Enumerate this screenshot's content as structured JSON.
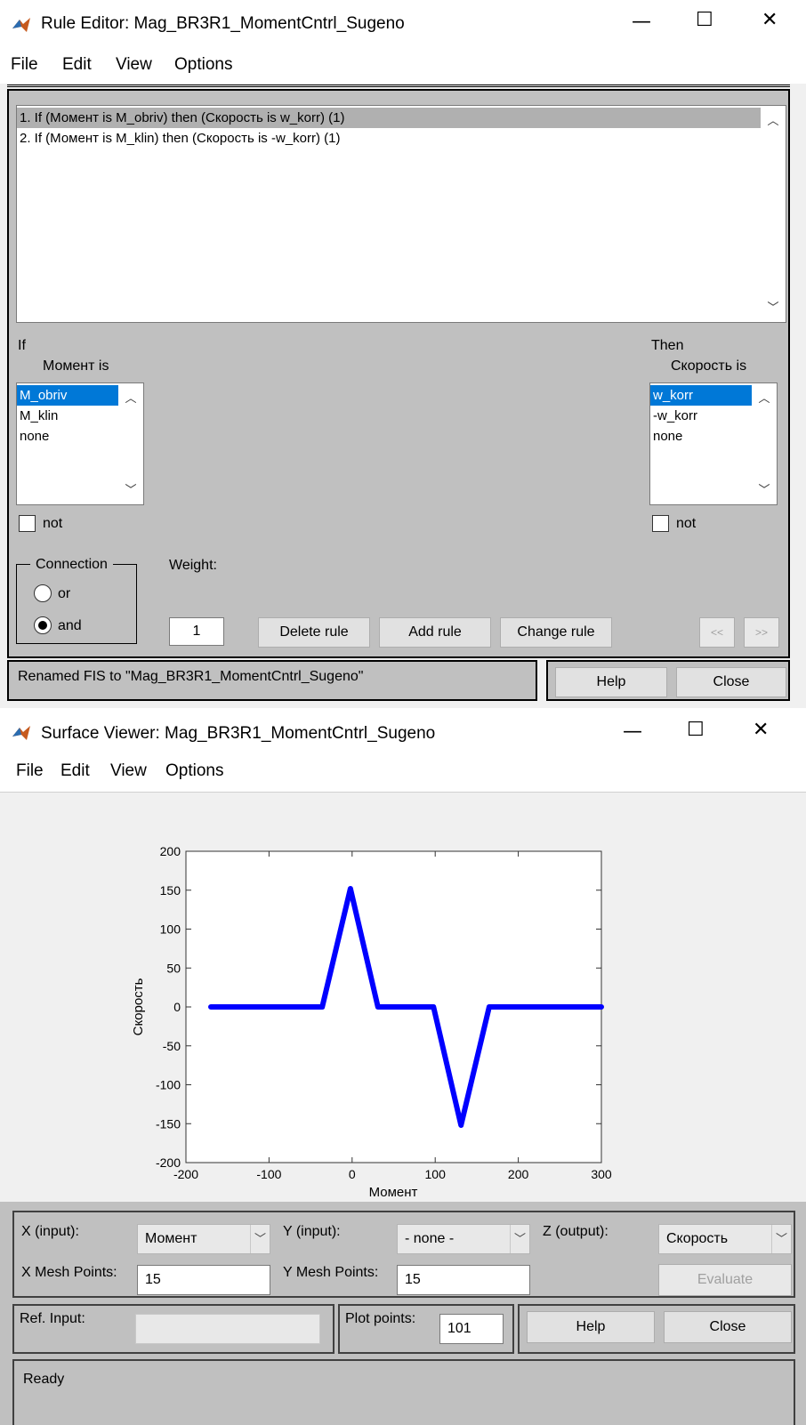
{
  "rule_editor": {
    "title": "Rule Editor: Mag_BR3R1_MomentCntrl_Sugeno",
    "menu": [
      "File",
      "Edit",
      "View",
      "Options"
    ],
    "rules": [
      "1. If (Момент is M_obriv) then (Скорость is w_korr) (1)",
      "2. If (Момент is M_klin) then (Скорость is -w_korr) (1)"
    ],
    "if_label": "If",
    "input_label": "Момент is",
    "input_options": [
      "M_obriv",
      "M_klin",
      "none"
    ],
    "input_selected": "M_obriv",
    "then_label": "Then",
    "output_label": "Скорость is",
    "output_options": [
      "w_korr",
      "-w_korr",
      "none"
    ],
    "output_selected": "w_korr",
    "not_label": "not",
    "connection_label": "Connection",
    "or_label": "or",
    "and_label": "and",
    "connection_selected": "and",
    "weight_label": "Weight:",
    "weight_value": "1",
    "delete_rule": "Delete rule",
    "add_rule": "Add rule",
    "change_rule": "Change rule",
    "prev": "<<",
    "next": ">>",
    "status": "Renamed FIS to \"Mag_BR3R1_MomentCntrl_Sugeno\"",
    "help": "Help",
    "close": "Close"
  },
  "surface_viewer": {
    "title": "Surface Viewer: Mag_BR3R1_MomentCntrl_Sugeno",
    "menu": [
      "File",
      "Edit",
      "View",
      "Options"
    ],
    "x_input_label": "X (input):",
    "x_input_value": "Момент",
    "y_input_label": "Y (input):",
    "y_input_value": "- none -",
    "z_output_label": "Z (output):",
    "z_output_value": "Скорость",
    "x_mesh_label": "X Mesh Points:",
    "x_mesh_value": "15",
    "y_mesh_label": "Y Mesh Points:",
    "y_mesh_value": "15",
    "evaluate": "Evaluate",
    "ref_input_label": "Ref. Input:",
    "ref_input_value": "",
    "plot_points_label": "Plot points:",
    "plot_points_value": "101",
    "help": "Help",
    "close": "Close",
    "status": "Ready"
  },
  "chart_data": {
    "type": "line",
    "xlabel": "Момент",
    "ylabel": "Скорость",
    "xlim": [
      -200,
      300
    ],
    "ylim": [
      -200,
      200
    ],
    "xticks": [
      -200,
      -100,
      0,
      100,
      200,
      300
    ],
    "yticks": [
      200,
      150,
      100,
      50,
      0,
      -50,
      -100,
      -150,
      -200
    ],
    "grid": false,
    "series": [
      {
        "color": "#0000ff",
        "x": [
          -170,
          -36,
          -2,
          31,
          98,
          131,
          165,
          300
        ],
        "y": [
          0,
          0,
          152,
          0,
          0,
          -152,
          0,
          0
        ]
      }
    ]
  }
}
